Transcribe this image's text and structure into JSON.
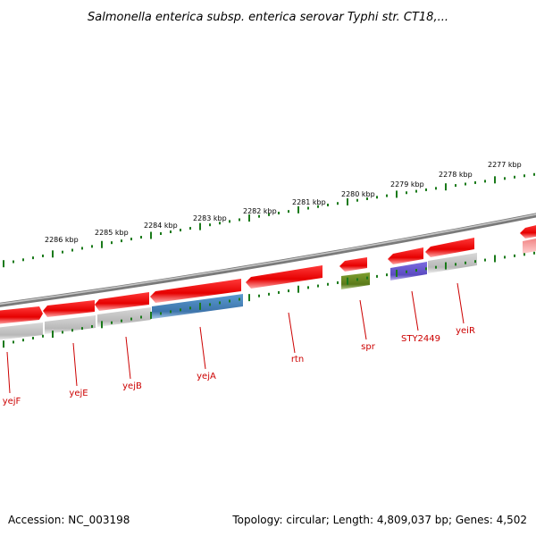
{
  "title": "Salmonella enterica subsp. enterica serovar Typhi str. CT18,...",
  "footer": {
    "accession": "Accession: NC_003198",
    "summary": "Topology: circular; Length: 4,809,037 bp; Genes: 4,502"
  },
  "colors": {
    "gene_forward": "#ee0000",
    "gene_reverse": "#c8c8c8",
    "tick_green": "#1a7a1a",
    "label_red": "#cc0000",
    "backbone": "#8a8a8a",
    "blue": "#4a86c0",
    "purple": "#6a5acd",
    "olive": "#6b8e23"
  },
  "scale_labels": [
    "2286 kbp",
    "2285 kbp",
    "2284 kbp",
    "2283 kbp",
    "2282 kbp",
    "2281 kbp",
    "2280 kbp",
    "2279 kbp",
    "2278 kbp",
    "2277 kbp"
  ],
  "gene_labels": [
    "yejF",
    "yejE",
    "yejB",
    "yejA",
    "rtn",
    "spr",
    "STY2449",
    "yeiR"
  ]
}
